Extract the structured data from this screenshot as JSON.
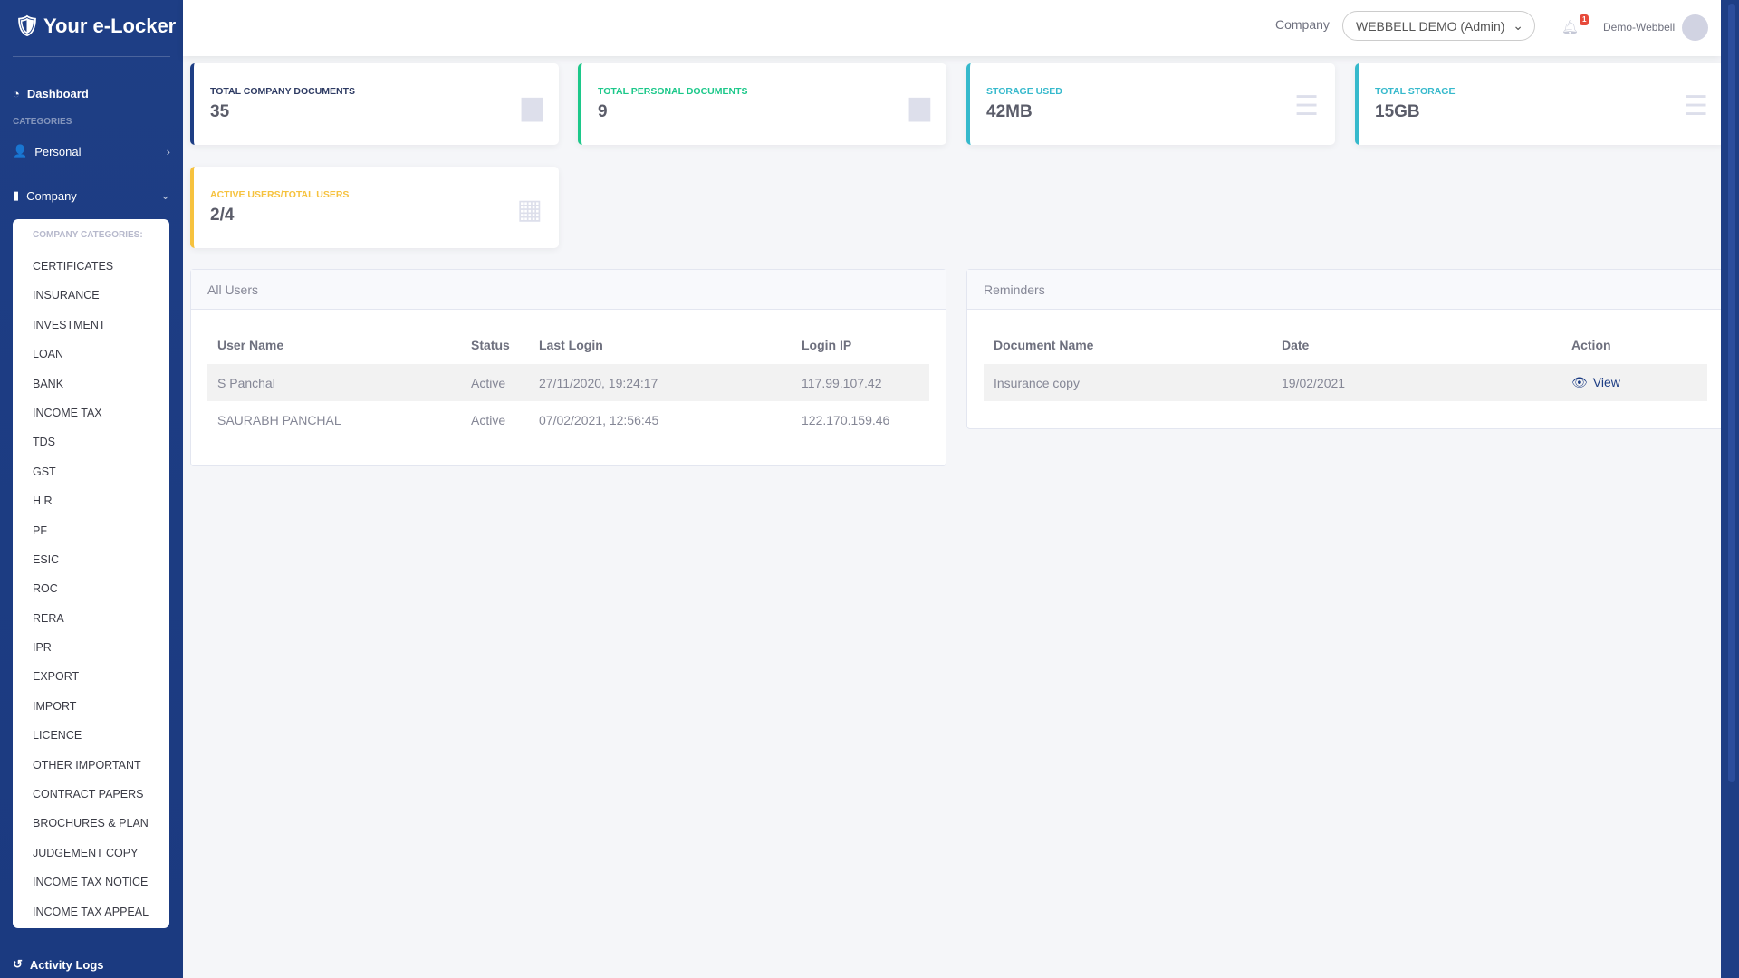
{
  "app": {
    "title": "Your e-Locker"
  },
  "sidebar": {
    "dashboard": "Dashboard",
    "categories_heading": "CATEGORIES",
    "personal": "Personal",
    "company": "Company",
    "company_categories_heading": "COMPANY CATEGORIES:",
    "company_items": [
      "CERTIFICATES",
      "INSURANCE",
      "INVESTMENT",
      "LOAN",
      "BANK",
      "INCOME TAX",
      "TDS",
      "GST",
      "H R",
      "PF",
      "ESIC",
      "ROC",
      "RERA",
      "IPR",
      "EXPORT",
      "IMPORT",
      "LICENCE",
      "OTHER IMPORTANT",
      "CONTRACT PAPERS",
      "BROCHURES & PLAN",
      "JUDGEMENT COPY",
      "INCOME TAX NOTICE",
      "INCOME TAX APPEAL"
    ],
    "activity_logs": "Activity Logs"
  },
  "header": {
    "company_label": "Company",
    "company_select": "WEBBELL DEMO (Admin)",
    "notification_count": "1",
    "username": "Demo-Webbell"
  },
  "cards": [
    {
      "label": "Total Company Documents",
      "value": "35",
      "color": "#1e3e85",
      "icon": "file-icon"
    },
    {
      "label": "Total Personal Documents",
      "value": "9",
      "color": "#1cc88a",
      "icon": "file-icon"
    },
    {
      "label": "Storage Used",
      "value": "42MB",
      "color": "#36b9cc",
      "icon": "database-icon"
    },
    {
      "label": "Total Storage",
      "value": "15GB",
      "color": "#36b9cc",
      "icon": "database-icon"
    },
    {
      "label": "Active Users/Total Users",
      "value": "2/4",
      "color": "#f6c23e",
      "icon": "calendar-icon"
    }
  ],
  "users": {
    "title": "All Users",
    "columns": [
      "User Name",
      "Status",
      "Last Login",
      "Login IP"
    ],
    "rows": [
      [
        "S Panchal",
        "Active",
        "27/11/2020, 19:24:17",
        "117.99.107.42"
      ],
      [
        "SAURABH PANCHAL",
        "Active",
        "07/02/2021, 12:56:45",
        "122.170.159.46"
      ]
    ]
  },
  "reminders": {
    "title": "Reminders",
    "columns": [
      "Document Name",
      "Date",
      "Action"
    ],
    "rows": [
      [
        "Insurance copy",
        "19/02/2021",
        "View"
      ]
    ]
  }
}
